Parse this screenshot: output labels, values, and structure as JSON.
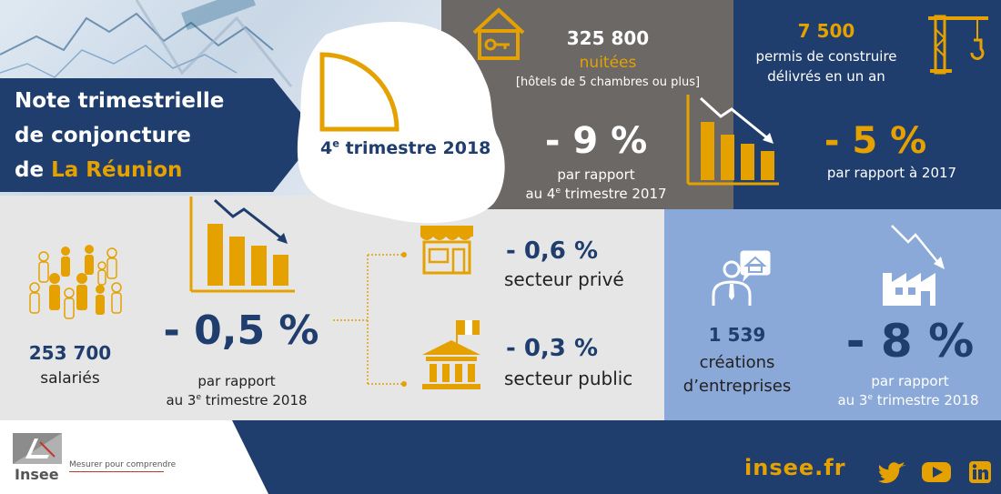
{
  "header": {
    "title_line1": "Note trimestrielle",
    "title_line2": "de conjoncture",
    "title_line3_prefix": "de ",
    "title_line3_highlight": "La Réunion",
    "quarter_num": "4",
    "quarter_sup": "e",
    "quarter_rest": "trimestre 2018"
  },
  "tourism": {
    "value": "325 800",
    "unit": "nuitées",
    "note": "[hôtels de 5 chambres ou plus]",
    "change": "- 9 %",
    "compare_line1": "par rapport",
    "compare_line2_prefix": "au 4",
    "compare_line2_sup": "e",
    "compare_line2_suffix": " trimestre 2017"
  },
  "construction": {
    "value": "7 500",
    "label_line1": "permis de construire",
    "label_line2": "délivrés en un an",
    "change": "- 5 %",
    "compare": "par rapport à  2017"
  },
  "employment": {
    "value": "253 700",
    "label": "salariés",
    "change": "- 0,5 %",
    "compare_line1": "par rapport",
    "compare_line2_prefix": "au 3",
    "compare_line2_sup": "e",
    "compare_line2_suffix": " trimestre 2018",
    "private_change": "- 0,6 %",
    "private_label": "secteur privé",
    "public_change": "- 0,3 %",
    "public_label": "secteur public"
  },
  "business": {
    "value": "1 539",
    "label_line1": "créations",
    "label_line2": "d’entreprises",
    "change": "- 8 %",
    "compare_line1": "par rapport",
    "compare_line2_prefix": "au 3",
    "compare_line2_sup": "e",
    "compare_line2_suffix": " trimestre 2018"
  },
  "footer": {
    "logo_text": "Insee",
    "tagline": "Mesurer pour comprendre",
    "site": "insee.fr"
  },
  "colors": {
    "navy": "#1f3e6e",
    "orange": "#e5a100",
    "gray_panel": "#6b6866",
    "light_blue_panel": "#8aa8d8",
    "light_gray": "#e6e6e6"
  },
  "icons": [
    "house-key-icon",
    "crane-icon",
    "declining-bar-chart-icon",
    "people-group-icon",
    "shop-icon",
    "government-building-icon",
    "entrepreneur-icon",
    "factory-icon",
    "twitter-icon",
    "youtube-icon",
    "linkedin-icon"
  ]
}
